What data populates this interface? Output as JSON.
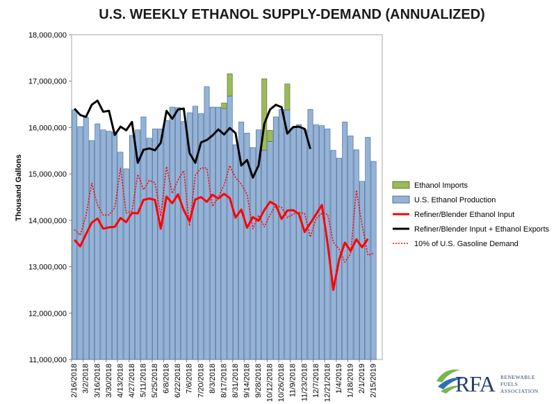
{
  "chart_data": {
    "type": "bar",
    "title": "U.S. WEEKLY ETHANOL SUPPLY-DEMAND (ANNUALIZED)",
    "xlabel": "",
    "ylabel": "Thousand Gallons",
    "ylim": [
      11000000,
      18000000
    ],
    "yticks": [
      "11,000,000",
      "12,000,000",
      "13,000,000",
      "14,000,000",
      "15,000,000",
      "16,000,000",
      "17,000,000",
      "18,000,000"
    ],
    "ytick_values": [
      11000000,
      12000000,
      13000000,
      14000000,
      15000000,
      16000000,
      17000000,
      18000000
    ],
    "categories": [
      "2/16/2018",
      "2/23/2018",
      "3/2/2018",
      "3/9/2018",
      "3/16/2018",
      "3/23/2018",
      "3/30/2018",
      "4/6/2018",
      "4/13/2018",
      "4/20/2018",
      "4/27/2018",
      "5/4/2018",
      "5/11/2018",
      "5/18/2018",
      "5/25/2018",
      "6/1/2018",
      "6/8/2018",
      "6/15/2018",
      "6/22/2018",
      "6/29/2018",
      "7/6/2018",
      "7/13/2018",
      "7/20/2018",
      "7/27/2018",
      "8/3/2018",
      "8/10/2018",
      "8/17/2018",
      "8/24/2018",
      "8/31/2018",
      "9/7/2018",
      "9/14/2018",
      "9/21/2018",
      "9/28/2018",
      "10/5/2018",
      "10/12/2018",
      "10/19/2018",
      "10/26/2018",
      "11/2/2018",
      "11/9/2018",
      "11/16/2018",
      "11/23/2018",
      "11/30/2018",
      "12/7/2018",
      "12/14/2018",
      "12/21/2018",
      "12/28/2018",
      "1/4/2019",
      "1/11/2019",
      "1/18/2019",
      "1/25/2019",
      "2/1/2019",
      "2/8/2019",
      "2/15/2019",
      "2/22/2019"
    ],
    "tick_labels_visible": [
      "2/16/2018",
      "3/2/2018",
      "3/16/2018",
      "3/30/2018",
      "4/13/2018",
      "4/27/2018",
      "5/11/2018",
      "5/25/2018",
      "6/8/2018",
      "6/22/2018",
      "7/6/2018",
      "7/20/2018",
      "8/3/2018",
      "8/17/2018",
      "8/31/2018",
      "9/14/2018",
      "9/28/2018",
      "10/12/2018",
      "10/26/2018",
      "11/9/2018",
      "11/23/2018",
      "12/7/2018",
      "12/21/2018",
      "1/4/2019",
      "1/18/2019",
      "2/1/2019",
      "2/15/2019"
    ],
    "series": [
      {
        "name": "U.S. Ethanol Production",
        "kind": "bar",
        "color": "#95b3d7",
        "values": [
          16380000,
          16020000,
          16220000,
          15720000,
          16080000,
          15950000,
          15920000,
          15900000,
          15470000,
          15110000,
          15830000,
          15950000,
          16230000,
          15770000,
          15970000,
          15970000,
          16150000,
          16440000,
          16430000,
          16130000,
          16320000,
          16460000,
          16300000,
          16880000,
          16440000,
          16440000,
          16410000,
          16680000,
          15630000,
          16120000,
          15880000,
          15570000,
          15950000,
          15510000,
          15700000,
          16230000,
          16390000,
          16380000,
          15980000,
          16060000,
          15950000,
          16390000,
          16060000,
          16040000,
          15970000,
          15510000,
          15340000,
          16120000,
          15820000,
          15520000,
          14840000,
          15790000,
          15270000,
          null
        ]
      },
      {
        "name": "Ethanol Imports",
        "kind": "stacked-bar",
        "color": "#9bbb59",
        "values": [
          0,
          0,
          0,
          0,
          0,
          0,
          0,
          0,
          0,
          0,
          0,
          0,
          0,
          0,
          0,
          0,
          0,
          0,
          0,
          0,
          0,
          0,
          0,
          0,
          0,
          0,
          120000,
          480000,
          0,
          0,
          0,
          0,
          0,
          1540000,
          240000,
          0,
          0,
          560000,
          0,
          0,
          0,
          0,
          0,
          0,
          0,
          0,
          0,
          0,
          0,
          0,
          0,
          0,
          0,
          null
        ]
      },
      {
        "name": "Refiner/Blender Ethanol Input",
        "kind": "line",
        "color": "#ff0000",
        "values": [
          13580000,
          13440000,
          13700000,
          13950000,
          14040000,
          13820000,
          13850000,
          13860000,
          14050000,
          13960000,
          14160000,
          14150000,
          14440000,
          14470000,
          14440000,
          13820000,
          14510000,
          14370000,
          14560000,
          14220000,
          13980000,
          14450000,
          14500000,
          14400000,
          14550000,
          14470000,
          14570000,
          14480000,
          14060000,
          14230000,
          13840000,
          14070000,
          13990000,
          14220000,
          14400000,
          14330000,
          14030000,
          14210000,
          14220000,
          14140000,
          13750000,
          13940000,
          14130000,
          14330000,
          13500000,
          12500000,
          13150000,
          13520000,
          13340000,
          13590000,
          13420000,
          13600000,
          null,
          null
        ]
      },
      {
        "name": "Refiner/Blender Input + Ethanol Exports",
        "kind": "line",
        "color": "#000000",
        "values": [
          16410000,
          16270000,
          16230000,
          16490000,
          16580000,
          16340000,
          16360000,
          15840000,
          16020000,
          15940000,
          16120000,
          15240000,
          15520000,
          15550000,
          15510000,
          15670000,
          16360000,
          16190000,
          16390000,
          16410000,
          15450000,
          15240000,
          15680000,
          15730000,
          15830000,
          15960000,
          15850000,
          15990000,
          15880000,
          15180000,
          15300000,
          14920000,
          15180000,
          16080000,
          16390000,
          16490000,
          16440000,
          15870000,
          16010000,
          16020000,
          15970000,
          15540000,
          null,
          null,
          null,
          null,
          null,
          null,
          null,
          null,
          null,
          null,
          null,
          null
        ]
      },
      {
        "name": "10% of U.S. Gasoline Demand",
        "kind": "dotted-line",
        "color": "#ff0000",
        "values": [
          13800000,
          13680000,
          14100000,
          14800000,
          14330000,
          14110000,
          14120000,
          14270000,
          15120000,
          14160000,
          14200000,
          14990000,
          14660000,
          14860000,
          14810000,
          14090000,
          15160000,
          14580000,
          14870000,
          15070000,
          13880000,
          14970000,
          15130000,
          15130000,
          14300000,
          14500000,
          14760000,
          15180000,
          14920000,
          14780000,
          14560000,
          13820000,
          14110000,
          13860000,
          14120000,
          14320000,
          14280000,
          14060000,
          14130000,
          14170000,
          14150000,
          13640000,
          14040000,
          14150000,
          14130000,
          13530000,
          13380000,
          13100000,
          13280000,
          14650000,
          13900000,
          13250000,
          13290000,
          null
        ]
      }
    ],
    "legend": {
      "placement": "right",
      "entries": [
        {
          "label": "Ethanol Imports",
          "style": "box",
          "color": "#9bbb59",
          "border": "#4f6228"
        },
        {
          "label": "U.S. Ethanol Production",
          "style": "box",
          "color": "#95b3d7",
          "border": "#385d8a"
        },
        {
          "label": "Refiner/Blender Ethanol Input",
          "style": "line",
          "color": "#ff0000"
        },
        {
          "label": "Refiner/Blender Input + Ethanol Exports",
          "style": "line",
          "color": "#000000"
        },
        {
          "label": "10% of U.S. Gasoline Demand",
          "style": "dotted",
          "color": "#ff0000"
        }
      ]
    },
    "grid": false
  },
  "logo": {
    "name": "RFA",
    "subtitle_lines": [
      "RENEWABLE",
      "FUELS",
      "ASSOCIATION"
    ],
    "colors": {
      "text": "#23406d",
      "swoosh_green": "#7ab648",
      "swoosh_blue": "#2f6fb7"
    }
  }
}
